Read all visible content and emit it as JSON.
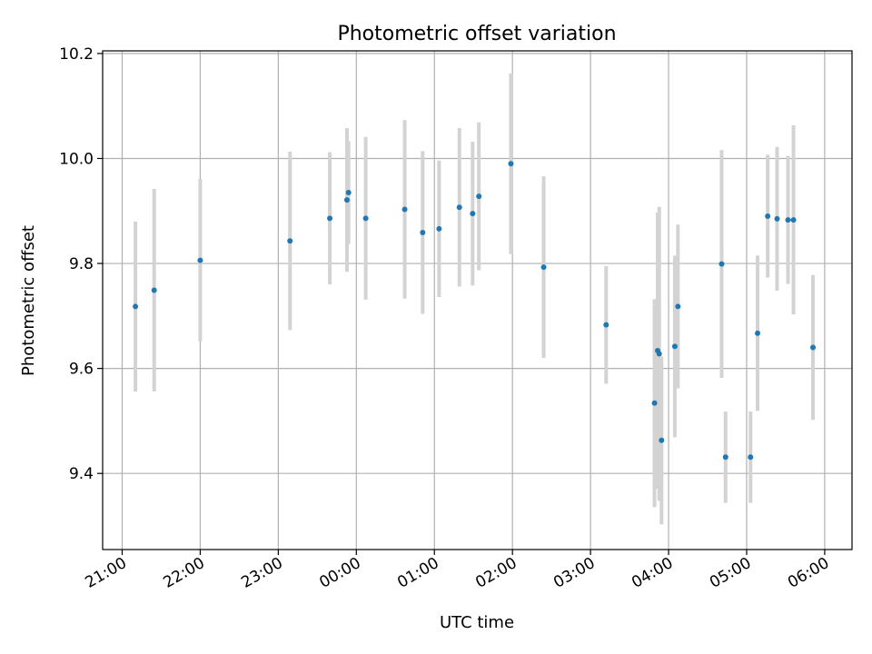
{
  "chart_data": {
    "type": "scatter",
    "title": "Photometric offset variation",
    "xlabel": "UTC time",
    "ylabel": "Photometric offset",
    "xlim": [
      20.75,
      30.35
    ],
    "ylim": [
      9.255,
      10.205
    ],
    "grid": true,
    "x_ticks": [
      {
        "value": 21,
        "label": "21:00"
      },
      {
        "value": 22,
        "label": "22:00"
      },
      {
        "value": 23,
        "label": "23:00"
      },
      {
        "value": 24,
        "label": "00:00"
      },
      {
        "value": 25,
        "label": "01:00"
      },
      {
        "value": 26,
        "label": "02:00"
      },
      {
        "value": 27,
        "label": "03:00"
      },
      {
        "value": 28,
        "label": "04:00"
      },
      {
        "value": 29,
        "label": "05:00"
      },
      {
        "value": 30,
        "label": "06:00"
      }
    ],
    "y_ticks": [
      {
        "value": 9.4,
        "label": "9.4"
      },
      {
        "value": 9.6,
        "label": "9.6"
      },
      {
        "value": 9.8,
        "label": "9.8"
      },
      {
        "value": 10.0,
        "label": "10.0"
      },
      {
        "value": 10.2,
        "label": "10.2"
      }
    ],
    "point_color": "#1f77b4",
    "errorbar_color": "#d3d3d3",
    "points": [
      {
        "x": 21.17,
        "y": 9.718,
        "err": 0.162
      },
      {
        "x": 21.41,
        "y": 9.749,
        "err": 0.193
      },
      {
        "x": 22.0,
        "y": 9.806,
        "err": 0.155
      },
      {
        "x": 23.15,
        "y": 9.843,
        "err": 0.17
      },
      {
        "x": 23.66,
        "y": 9.886,
        "err": 0.126
      },
      {
        "x": 23.88,
        "y": 9.921,
        "err": 0.137
      },
      {
        "x": 23.9,
        "y": 9.935,
        "err": 0.098
      },
      {
        "x": 24.12,
        "y": 9.886,
        "err": 0.155
      },
      {
        "x": 24.62,
        "y": 9.903,
        "err": 0.17
      },
      {
        "x": 24.85,
        "y": 9.859,
        "err": 0.155
      },
      {
        "x": 25.06,
        "y": 9.866,
        "err": 0.13
      },
      {
        "x": 25.32,
        "y": 9.907,
        "err": 0.151
      },
      {
        "x": 25.49,
        "y": 9.895,
        "err": 0.137
      },
      {
        "x": 25.57,
        "y": 9.928,
        "err": 0.141
      },
      {
        "x": 25.98,
        "y": 9.99,
        "err": 0.172
      },
      {
        "x": 26.4,
        "y": 9.793,
        "err": 0.173
      },
      {
        "x": 27.2,
        "y": 9.683,
        "err": 0.112
      },
      {
        "x": 27.82,
        "y": 9.534,
        "err": 0.198
      },
      {
        "x": 27.86,
        "y": 9.634,
        "err": 0.263
      },
      {
        "x": 27.88,
        "y": 9.628,
        "err": 0.28
      },
      {
        "x": 27.91,
        "y": 9.463,
        "err": 0.16
      },
      {
        "x": 28.08,
        "y": 9.642,
        "err": 0.173
      },
      {
        "x": 28.12,
        "y": 9.718,
        "err": 0.156
      },
      {
        "x": 28.68,
        "y": 9.799,
        "err": 0.217
      },
      {
        "x": 28.73,
        "y": 9.431,
        "err": 0.087
      },
      {
        "x": 29.05,
        "y": 9.431,
        "err": 0.087
      },
      {
        "x": 29.14,
        "y": 9.667,
        "err": 0.148
      },
      {
        "x": 29.27,
        "y": 9.89,
        "err": 0.117
      },
      {
        "x": 29.39,
        "y": 9.885,
        "err": 0.137
      },
      {
        "x": 29.53,
        "y": 9.883,
        "err": 0.122
      },
      {
        "x": 29.6,
        "y": 9.883,
        "err": 0.18
      },
      {
        "x": 29.85,
        "y": 9.64,
        "err": 0.138
      }
    ]
  }
}
